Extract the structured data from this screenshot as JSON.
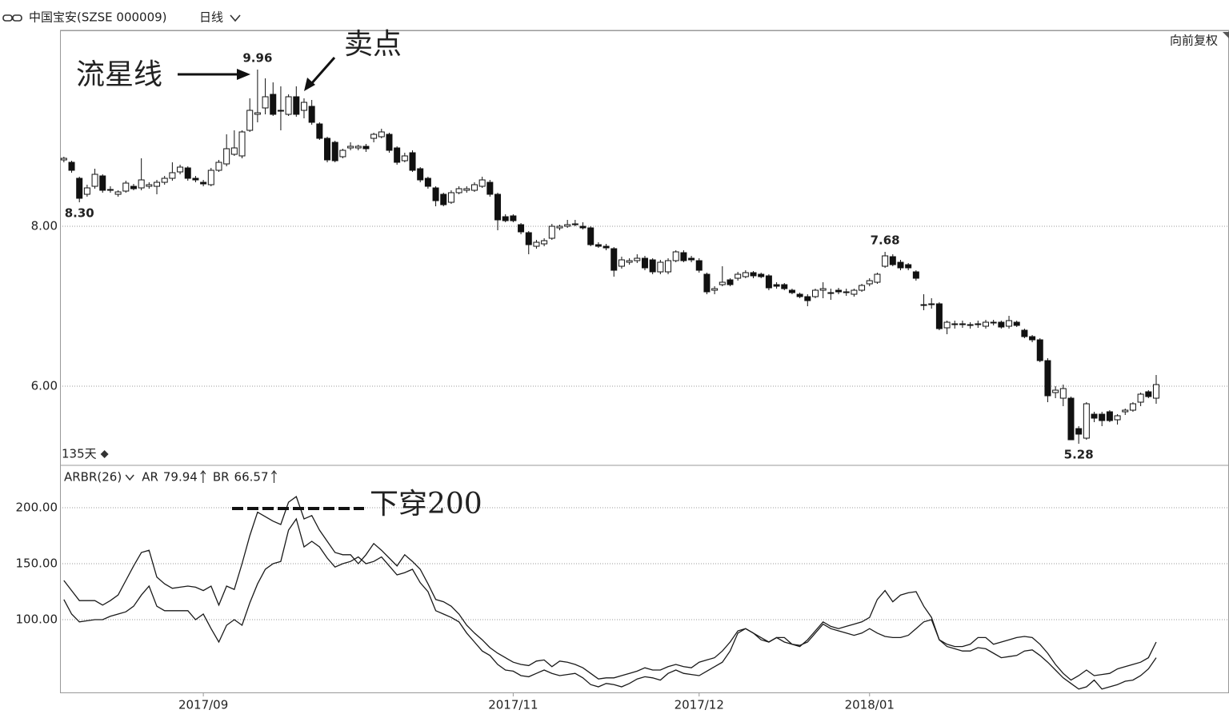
{
  "header": {
    "title": "中国宝安(SZSE  000009)",
    "period": "日线",
    "adjust": "向前复权"
  },
  "chart_data": [
    {
      "type": "candlestick",
      "up_color": "#ffffff",
      "down_color": "#111111",
      "grid": true,
      "xlim": [
        -0.5,
        150.4
      ],
      "ylim": [
        5.01,
        10.45
      ],
      "yticks": [
        {
          "value": 8,
          "label": "8.00"
        },
        {
          "value": 6,
          "label": "6.00"
        }
      ],
      "range_label": "135天",
      "annotations": [
        "流星线",
        "卖点"
      ],
      "price_labels": [
        {
          "index": 25,
          "value": 9.96
        },
        {
          "index": 2,
          "value": 8.3,
          "label": "8.30"
        },
        {
          "index": 106,
          "value": 7.68
        },
        {
          "index": 131,
          "value": 5.28
        }
      ],
      "open": [
        8.83,
        8.8,
        8.6,
        8.4,
        8.5,
        8.63,
        8.45,
        8.4,
        8.44,
        8.5,
        8.48,
        8.5,
        8.5,
        8.55,
        8.6,
        8.68,
        8.73,
        8.6,
        8.55,
        8.52,
        8.7,
        8.78,
        8.9,
        8.88,
        9.2,
        9.4,
        9.48,
        9.65,
        9.44,
        9.4,
        9.62,
        9.45,
        9.5,
        9.28,
        9.1,
        9.05,
        8.87,
        8.98,
        8.98,
        9.0,
        9.1,
        9.12,
        9.15,
        8.98,
        8.82,
        8.92,
        8.72,
        8.6,
        8.48,
        8.4,
        8.3,
        8.42,
        8.45,
        8.45,
        8.5,
        8.55,
        8.4,
        8.12,
        8.13,
        8.02,
        7.92,
        7.75,
        7.78,
        7.85,
        7.98,
        8.0,
        8.02,
        8.0,
        7.98,
        7.77,
        7.75,
        7.72,
        7.5,
        7.55,
        7.57,
        7.6,
        7.58,
        7.43,
        7.43,
        7.57,
        7.67,
        7.6,
        7.57,
        7.4,
        7.2,
        7.27,
        7.33,
        7.35,
        7.37,
        7.42,
        7.4,
        7.38,
        7.27,
        7.27,
        7.2,
        7.15,
        7.12,
        7.12,
        7.2,
        7.17,
        7.2,
        7.18,
        7.15,
        7.2,
        7.28,
        7.3,
        7.5,
        7.62,
        7.55,
        7.52,
        7.43,
        7.02,
        7.02,
        7.03,
        6.73,
        6.77,
        6.77,
        6.77,
        6.77,
        6.75,
        6.8,
        6.8,
        6.75,
        6.8,
        6.7,
        6.62,
        6.58,
        6.32,
        5.92,
        5.85,
        5.85,
        5.47,
        5.35,
        5.65,
        5.65,
        5.68,
        5.58,
        5.68,
        5.7,
        5.8,
        5.93,
        5.85
      ],
      "high": [
        8.87,
        8.82,
        8.62,
        8.52,
        8.72,
        8.65,
        8.5,
        8.45,
        8.57,
        8.53,
        8.85,
        8.55,
        8.58,
        8.63,
        8.8,
        8.77,
        8.75,
        8.63,
        8.58,
        8.73,
        8.83,
        9.15,
        9.2,
        9.2,
        9.6,
        9.96,
        9.85,
        9.8,
        9.75,
        9.65,
        9.75,
        9.6,
        9.58,
        9.3,
        9.12,
        9.07,
        8.97,
        9.05,
        9.02,
        9.03,
        9.17,
        9.22,
        9.17,
        9.0,
        8.92,
        8.95,
        8.74,
        8.62,
        8.5,
        8.42,
        8.45,
        8.5,
        8.5,
        8.55,
        8.62,
        8.58,
        8.42,
        8.15,
        8.15,
        8.04,
        7.94,
        7.83,
        7.85,
        8.03,
        8.02,
        8.08,
        8.08,
        8.05,
        8.0,
        7.8,
        7.78,
        7.74,
        7.62,
        7.6,
        7.65,
        7.63,
        7.6,
        7.58,
        7.6,
        7.7,
        7.7,
        7.63,
        7.6,
        7.42,
        7.25,
        7.5,
        7.35,
        7.43,
        7.45,
        7.44,
        7.42,
        7.4,
        7.3,
        7.29,
        7.22,
        7.17,
        7.15,
        7.22,
        7.3,
        7.22,
        7.23,
        7.22,
        7.22,
        7.28,
        7.35,
        7.42,
        7.68,
        7.65,
        7.58,
        7.54,
        7.45,
        7.15,
        7.1,
        7.05,
        6.82,
        6.82,
        6.82,
        6.8,
        6.82,
        6.83,
        6.83,
        6.82,
        6.88,
        6.82,
        6.72,
        6.64,
        6.6,
        6.35,
        6.0,
        6.02,
        5.87,
        5.5,
        5.8,
        5.68,
        5.68,
        5.7,
        5.65,
        5.72,
        5.8,
        5.92,
        5.95,
        6.14
      ],
      "low": [
        8.8,
        8.67,
        8.3,
        8.37,
        8.47,
        8.42,
        8.42,
        8.37,
        8.42,
        8.45,
        8.45,
        8.47,
        8.4,
        8.52,
        8.57,
        8.65,
        8.57,
        8.55,
        8.5,
        8.5,
        8.68,
        8.75,
        8.88,
        8.85,
        9.18,
        9.3,
        9.4,
        9.38,
        9.2,
        9.38,
        9.37,
        9.35,
        9.27,
        9.08,
        8.8,
        8.8,
        8.85,
        8.95,
        8.95,
        8.93,
        9.05,
        9.1,
        8.92,
        8.77,
        8.8,
        8.68,
        8.55,
        8.47,
        8.25,
        8.25,
        8.28,
        8.4,
        8.42,
        8.43,
        8.48,
        8.37,
        7.95,
        8.05,
        8.05,
        7.9,
        7.65,
        7.72,
        7.75,
        7.83,
        7.95,
        7.98,
        8.0,
        7.96,
        7.75,
        7.73,
        7.7,
        7.37,
        7.47,
        7.52,
        7.54,
        7.45,
        7.4,
        7.4,
        7.4,
        7.55,
        7.55,
        7.55,
        7.42,
        7.15,
        7.15,
        7.25,
        7.25,
        7.32,
        7.35,
        7.35,
        7.35,
        7.2,
        7.22,
        7.2,
        7.15,
        7.1,
        7.0,
        7.1,
        7.1,
        7.08,
        7.15,
        7.13,
        7.12,
        7.18,
        7.25,
        7.28,
        7.48,
        7.5,
        7.45,
        7.45,
        7.32,
        6.95,
        6.97,
        6.7,
        6.65,
        6.72,
        6.73,
        6.72,
        6.73,
        6.72,
        6.76,
        6.72,
        6.72,
        6.74,
        6.6,
        6.55,
        6.3,
        5.8,
        5.85,
        5.75,
        5.33,
        5.28,
        5.33,
        5.55,
        5.5,
        5.55,
        5.52,
        5.64,
        5.68,
        5.75,
        5.85,
        5.78
      ],
      "close": [
        8.85,
        8.7,
        8.35,
        8.48,
        8.65,
        8.45,
        8.46,
        8.43,
        8.54,
        8.47,
        8.58,
        8.52,
        8.55,
        8.6,
        8.67,
        8.74,
        8.6,
        8.58,
        8.53,
        8.7,
        8.8,
        8.97,
        8.98,
        9.18,
        9.45,
        9.42,
        9.62,
        9.4,
        9.45,
        9.62,
        9.4,
        9.55,
        9.3,
        9.1,
        8.83,
        8.82,
        8.95,
        9.0,
        9.0,
        8.97,
        9.15,
        9.18,
        8.95,
        8.8,
        8.88,
        8.7,
        8.58,
        8.5,
        8.32,
        8.27,
        8.42,
        8.47,
        8.47,
        8.52,
        8.58,
        8.4,
        8.08,
        8.07,
        8.07,
        7.93,
        7.77,
        7.8,
        7.82,
        8.0,
        8.0,
        8.02,
        8.03,
        7.98,
        7.77,
        7.75,
        7.73,
        7.45,
        7.58,
        7.57,
        7.6,
        7.48,
        7.43,
        7.55,
        7.57,
        7.68,
        7.57,
        7.58,
        7.45,
        7.18,
        7.22,
        7.3,
        7.27,
        7.4,
        7.42,
        7.38,
        7.37,
        7.23,
        7.25,
        7.22,
        7.17,
        7.12,
        7.07,
        7.2,
        7.22,
        7.16,
        7.18,
        7.17,
        7.2,
        7.26,
        7.32,
        7.4,
        7.63,
        7.52,
        7.48,
        7.48,
        7.35,
        7.02,
        7.03,
        6.72,
        6.8,
        6.78,
        6.78,
        6.77,
        6.78,
        6.8,
        6.79,
        6.74,
        6.82,
        6.76,
        6.62,
        6.58,
        6.32,
        5.88,
        5.95,
        5.97,
        5.33,
        5.4,
        5.78,
        5.6,
        5.57,
        5.57,
        5.63,
        5.7,
        5.78,
        5.9,
        5.87,
        6.02
      ]
    },
    {
      "type": "line",
      "title": "ARBR(26)",
      "grid": true,
      "annotation": "下穿200",
      "xlim": [
        -0.5,
        150.4
      ],
      "ylim": [
        35,
        237.9
      ],
      "xticks": [
        {
          "value": 18,
          "label": "2017/09"
        },
        {
          "value": 58,
          "label": "2017/11"
        },
        {
          "value": 82,
          "label": "2017/12"
        },
        {
          "value": 104,
          "label": "2018/01"
        }
      ],
      "yticks": [
        {
          "value": 200,
          "label": "200.00"
        },
        {
          "value": 150,
          "label": "150.00"
        },
        {
          "value": 100,
          "label": "100.00"
        }
      ],
      "series": [
        {
          "name": "AR",
          "color": "#1a1a1a",
          "legend_value": 79.94,
          "values": [
            135,
            126,
            117,
            117,
            117,
            113,
            117,
            122,
            135,
            148,
            160,
            162,
            138,
            132,
            128,
            129,
            130,
            129,
            126,
            130,
            113,
            130,
            127,
            150,
            175,
            196,
            192,
            188,
            185,
            205,
            210,
            190,
            193,
            180,
            170,
            160,
            158,
            158,
            150,
            158,
            168,
            162,
            155,
            148,
            158,
            152,
            145,
            132,
            118,
            116,
            112,
            105,
            95,
            88,
            82,
            75,
            70,
            66,
            62,
            60,
            59,
            63,
            64,
            58,
            63,
            62,
            60,
            57,
            52,
            47,
            48,
            48,
            50,
            52,
            54,
            57,
            55,
            55,
            58,
            60,
            58,
            57,
            62,
            64,
            66,
            72,
            80,
            90,
            92,
            88,
            84,
            80,
            84,
            84,
            78,
            76,
            82,
            90,
            98,
            94,
            92,
            94,
            96,
            98,
            102,
            118,
            126,
            116,
            122,
            124,
            125,
            112,
            102,
            82,
            78,
            76,
            76,
            78,
            84,
            84,
            78,
            80,
            82,
            84,
            85,
            84,
            78,
            70,
            60,
            52,
            46,
            50,
            55,
            50,
            51,
            52,
            56,
            58,
            60,
            62,
            66,
            80
          ]
        },
        {
          "name": "BR",
          "color": "#1a1a1a",
          "legend_value": 66.57,
          "values": [
            118,
            105,
            98,
            99,
            100,
            100,
            103,
            105,
            107,
            112,
            122,
            130,
            112,
            108,
            108,
            108,
            108,
            100,
            105,
            92,
            80,
            95,
            100,
            95,
            115,
            132,
            145,
            150,
            152,
            180,
            190,
            165,
            170,
            165,
            155,
            147,
            150,
            152,
            156,
            150,
            152,
            156,
            148,
            140,
            142,
            145,
            133,
            125,
            108,
            105,
            102,
            98,
            88,
            80,
            72,
            68,
            60,
            55,
            54,
            50,
            49,
            52,
            55,
            52,
            50,
            51,
            52,
            48,
            42,
            40,
            43,
            42,
            40,
            43,
            47,
            49,
            48,
            46,
            52,
            55,
            52,
            51,
            50,
            54,
            58,
            62,
            72,
            88,
            92,
            88,
            82,
            80,
            84,
            80,
            78,
            77,
            80,
            88,
            96,
            92,
            90,
            88,
            86,
            88,
            92,
            88,
            85,
            84,
            84,
            86,
            92,
            98,
            100,
            82,
            76,
            74,
            72,
            72,
            75,
            74,
            70,
            66,
            67,
            68,
            72,
            73,
            68,
            62,
            55,
            48,
            43,
            38,
            40,
            46,
            38,
            40,
            42,
            45,
            46,
            50,
            56,
            66
          ]
        }
      ]
    }
  ]
}
